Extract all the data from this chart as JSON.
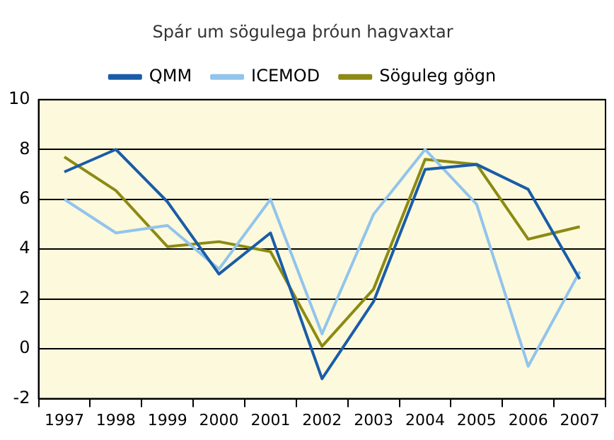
{
  "chart_data": {
    "type": "line",
    "title": "Spár um sögulega þróun hagvaxtar",
    "categories": [
      "1997",
      "1998",
      "1999",
      "2000",
      "2001",
      "2002",
      "2003",
      "2004",
      "2005",
      "2006",
      "2007"
    ],
    "series": [
      {
        "name": "QMM",
        "color": "#1a5ca8",
        "values": [
          7.1,
          8.0,
          5.9,
          3.0,
          4.65,
          -1.2,
          1.9,
          7.2,
          7.4,
          6.4,
          2.8
        ]
      },
      {
        "name": "ICEMOD",
        "color": "#92c4ec",
        "values": [
          6.0,
          4.65,
          4.95,
          3.2,
          6.0,
          0.6,
          5.4,
          8.0,
          5.8,
          -0.7,
          3.1
        ]
      },
      {
        "name": "Söguleg gögn",
        "color": "#8c8a12",
        "values": [
          7.7,
          6.35,
          4.1,
          4.3,
          3.9,
          0.1,
          2.4,
          7.6,
          7.4,
          4.4,
          4.9
        ]
      }
    ],
    "ylim": [
      -2,
      10
    ],
    "yticks": [
      -2,
      0,
      2,
      4,
      6,
      8,
      10
    ],
    "grid": "y",
    "legend": "top",
    "marker": "none",
    "line_style": "solid"
  }
}
